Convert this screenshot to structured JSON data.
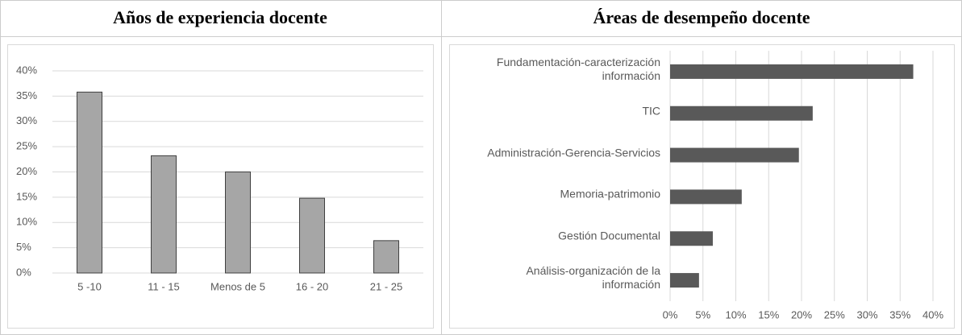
{
  "chart_data": [
    {
      "type": "bar",
      "orientation": "vertical",
      "title": "Años de experiencia docente",
      "categories": [
        "5 -10",
        "11 - 15",
        "Menos de 5",
        "16 - 20",
        "21 - 25"
      ],
      "values": [
        35.8,
        23.2,
        20,
        14.8,
        6.4
      ],
      "color": "#a6a6a6",
      "ylim": [
        0,
        40
      ],
      "yticks": [
        {
          "value": 0,
          "label": "0%"
        },
        {
          "value": 5,
          "label": "5%"
        },
        {
          "value": 10,
          "label": "10%"
        },
        {
          "value": 15,
          "label": "15%"
        },
        {
          "value": 20,
          "label": "20%"
        },
        {
          "value": 25,
          "label": "25%"
        },
        {
          "value": 30,
          "label": "30%"
        },
        {
          "value": 35,
          "label": "35%"
        },
        {
          "value": 40,
          "label": "40%"
        }
      ],
      "grid": true
    },
    {
      "type": "bar",
      "orientation": "horizontal",
      "title": "Áreas de desempeño docente",
      "categories": [
        "Fundamentación-caracterización\ninformación",
        "TIC",
        "Administración-Gerencia-Servicios",
        "Memoria-patrimonio",
        "Gestión Documental",
        "Análisis-organización de la\ninformación"
      ],
      "values": [
        37,
        21.7,
        19.6,
        10.9,
        6.5,
        4.4
      ],
      "color": "#595959",
      "xlim": [
        0,
        40
      ],
      "xticks": [
        {
          "value": 0,
          "label": "0%"
        },
        {
          "value": 5,
          "label": "5%"
        },
        {
          "value": 10,
          "label": "10%"
        },
        {
          "value": 15,
          "label": "15%"
        },
        {
          "value": 20,
          "label": "20%"
        },
        {
          "value": 25,
          "label": "25%"
        },
        {
          "value": 30,
          "label": "30%"
        },
        {
          "value": 35,
          "label": "35%"
        },
        {
          "value": 40,
          "label": "40%"
        }
      ],
      "grid": true
    }
  ]
}
